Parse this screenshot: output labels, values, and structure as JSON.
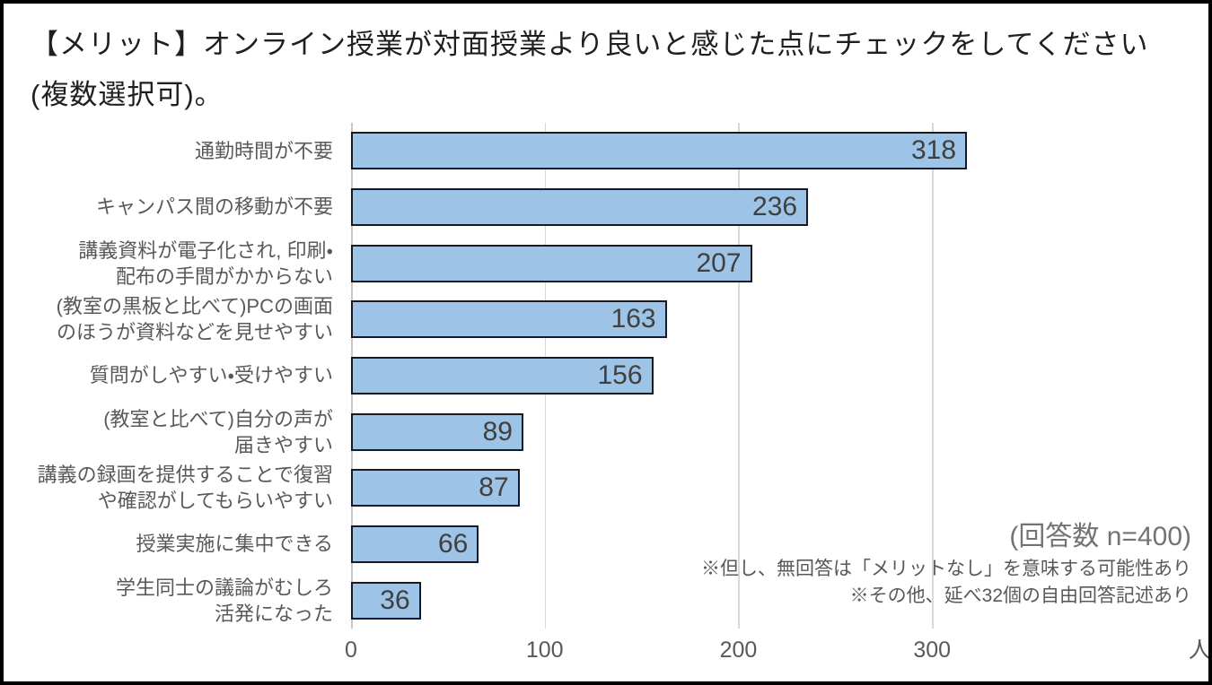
{
  "title": {
    "line1": "【メリット】オンライン授業が対面授業より良いと感じた点にチェックをしてください",
    "line2": "(複数選択可)。"
  },
  "chart_data": {
    "type": "bar",
    "orientation": "horizontal",
    "title": "【メリット】オンライン授業が対面授業より良いと感じた点にチェックをしてください(複数選択可)。",
    "categories": [
      "通勤時間が不要",
      "キャンパス間の移動が不要",
      "講義資料が電子化され, 印刷・\n配布の手間がかからない",
      "(教室の黒板と比べて)PCの画面\nのほうが資料などを見せやすい",
      "質問がしやすい・受けやすい",
      "(教室と比べて)自分の声が\n届きやすい",
      "講義の録画を提供することで復習\nや確認がしてもらいやすい",
      "授業実施に集中できる",
      "学生同士の議論がむしろ\n活発になった"
    ],
    "values": [
      318,
      236,
      207,
      163,
      156,
      89,
      87,
      66,
      36
    ],
    "xlabel": "",
    "ylabel": "",
    "x_unit": "人",
    "xlim": [
      0,
      445
    ],
    "xticks": [
      0,
      100,
      200,
      300
    ],
    "xtick_labels": [
      "0",
      "100",
      "200",
      "300"
    ],
    "grid": true,
    "legend": "none",
    "data_labels": "inside-end"
  },
  "annotations": {
    "respondents": "(回答数 n=400)",
    "note1": "※但し、無回答は「メリットなし」を意味する可能性あり",
    "note2": "※その他、延べ32個の自由回答記述あり"
  },
  "colors": {
    "bar_fill": "#9DC3E6",
    "bar_border": "#151A24",
    "gridline": "#D9D9D9",
    "axis_line": "#C9C9C9",
    "title_text": "#1F1F1F",
    "category_text": "#595959",
    "value_text": "#404040",
    "annotation_text": "#595959",
    "frame_border": "#000000",
    "background": "#FFFFFF"
  }
}
